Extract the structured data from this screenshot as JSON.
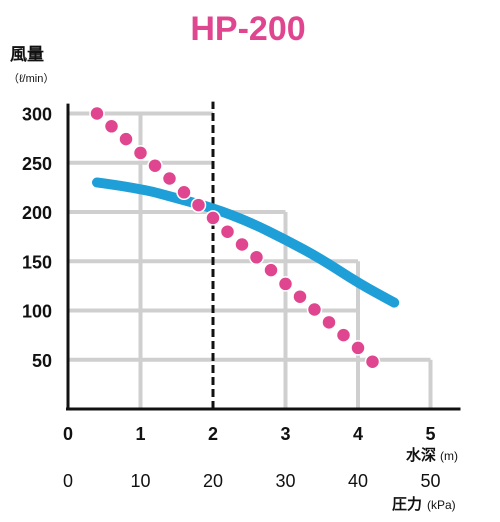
{
  "chart_data": {
    "type": "line",
    "title": "HP-200",
    "ylabel": "風量",
    "ylabel_unit": "（ℓ/min）",
    "xlabel": "水深",
    "xlabel_unit": "(m)",
    "x2label": "圧力",
    "x2label_unit": "(kPa)",
    "xlim": [
      0,
      5
    ],
    "ylim": [
      0,
      300
    ],
    "x_ticks": [
      "0",
      "1",
      "2",
      "3",
      "4",
      "5"
    ],
    "x2_ticks": [
      "0",
      "10",
      "20",
      "30",
      "40",
      "50"
    ],
    "y_ticks": [
      "300",
      "250",
      "200",
      "150",
      "100",
      "50"
    ],
    "highlight_x": 2,
    "highlight_x_label": "2",
    "series": [
      {
        "style": "line",
        "color": "#1f9fd8",
        "x": [
          0.4,
          1.0,
          1.5,
          2.0,
          2.5,
          3.0,
          3.5,
          4.0,
          4.5
        ],
        "y": [
          230,
          224,
          214,
          204,
          190,
          172,
          152,
          128,
          108
        ]
      },
      {
        "style": "dotted",
        "color": "#e0468f",
        "x": [
          0.4,
          0.6,
          0.8,
          1.0,
          1.2,
          1.4,
          1.6,
          1.8,
          2.0,
          2.2,
          2.4,
          2.6,
          2.8,
          3.0,
          3.2,
          3.4,
          3.6,
          3.8,
          4.0,
          4.2
        ],
        "y": [
          300,
          287,
          274,
          260,
          247,
          234,
          220,
          207,
          194,
          180,
          167,
          154,
          141,
          127,
          114,
          101,
          88,
          75,
          62,
          48
        ]
      }
    ]
  }
}
